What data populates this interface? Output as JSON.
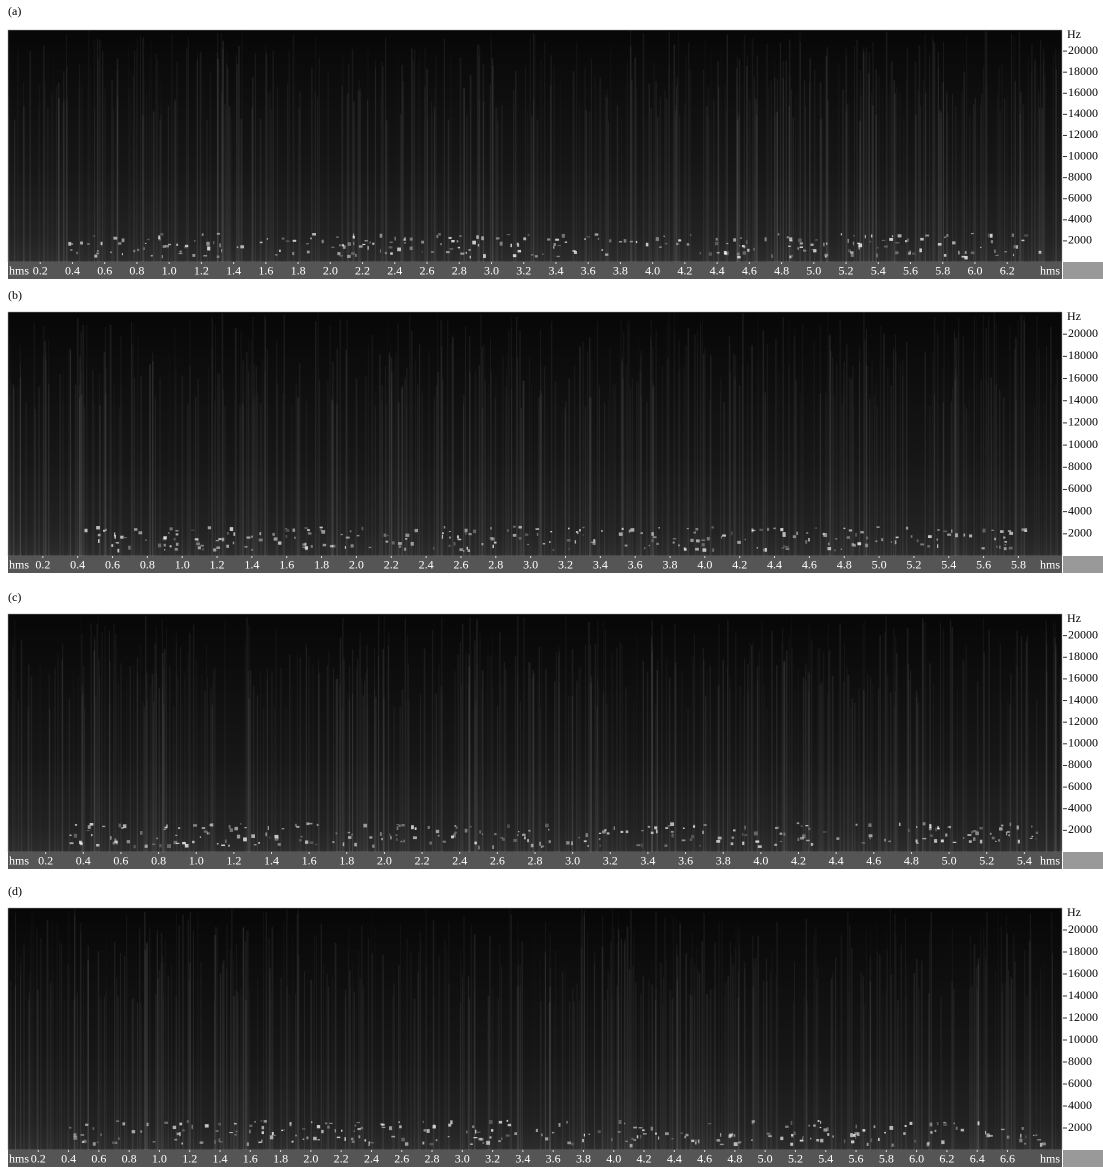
{
  "chart_data": [
    {
      "type": "spectrogram",
      "panel_label": "(a)",
      "xlabel": "hms",
      "ylabel": "Hz",
      "xlim": [
        0,
        6.54
      ],
      "ylim": [
        0,
        22000
      ],
      "xticks": [
        0.2,
        0.4,
        0.6,
        0.8,
        {
          "value": 1,
          "label": "1.0"
        },
        1.2,
        1.4,
        1.6,
        1.8,
        {
          "value": 2,
          "label": "2.0"
        },
        2.2,
        2.4,
        2.6,
        2.8,
        {
          "value": 3,
          "label": "3.0"
        },
        3.2,
        3.4,
        3.6,
        3.8,
        {
          "value": 4,
          "label": "4.0"
        },
        4.2,
        4.4,
        4.6,
        4.8,
        {
          "value": 5,
          "label": "5.0"
        },
        5.2,
        5.4,
        5.6,
        5.8,
        {
          "value": 6,
          "label": "6.0"
        },
        6.2
      ],
      "yticks": [
        2000,
        4000,
        6000,
        8000,
        10000,
        12000,
        14000,
        16000,
        18000,
        20000
      ]
    },
    {
      "type": "spectrogram",
      "panel_label": "(b)",
      "xlabel": "hms",
      "ylabel": "Hz",
      "xlim": [
        0,
        6.05
      ],
      "ylim": [
        0,
        22000
      ],
      "xticks": [
        0.2,
        0.4,
        0.6,
        0.8,
        {
          "value": 1,
          "label": "1.0"
        },
        1.2,
        1.4,
        1.6,
        1.8,
        {
          "value": 2,
          "label": "2.0"
        },
        2.2,
        2.4,
        2.6,
        2.8,
        {
          "value": 3,
          "label": "3.0"
        },
        3.2,
        3.4,
        3.6,
        3.8,
        {
          "value": 4,
          "label": "4.0"
        },
        4.2,
        4.4,
        4.6,
        4.8,
        {
          "value": 5,
          "label": "5.0"
        },
        5.2,
        5.4,
        5.6,
        5.8
      ],
      "yticks": [
        2000,
        4000,
        6000,
        8000,
        10000,
        12000,
        14000,
        16000,
        18000,
        20000
      ]
    },
    {
      "type": "spectrogram",
      "panel_label": "(c)",
      "xlabel": "hms",
      "ylabel": "Hz",
      "xlim": [
        0,
        5.6
      ],
      "ylim": [
        0,
        22000
      ],
      "xticks": [
        0.2,
        0.4,
        0.6,
        0.8,
        {
          "value": 1,
          "label": "1.0"
        },
        1.2,
        1.4,
        1.6,
        1.8,
        {
          "value": 2,
          "label": "2.0"
        },
        2.2,
        2.4,
        2.6,
        2.8,
        {
          "value": 3,
          "label": "3.0"
        },
        3.2,
        3.4,
        3.6,
        3.8,
        {
          "value": 4,
          "label": "4.0"
        },
        4.2,
        4.4,
        4.6,
        4.8,
        {
          "value": 5,
          "label": "5.0"
        },
        5.2,
        5.4
      ],
      "yticks": [
        2000,
        4000,
        6000,
        8000,
        10000,
        12000,
        14000,
        16000,
        18000,
        20000
      ]
    },
    {
      "type": "spectrogram",
      "panel_label": "(d)",
      "xlabel": "hms",
      "ylabel": "Hz",
      "xlim": [
        0,
        6.96
      ],
      "ylim": [
        0,
        22000
      ],
      "xticks": [
        0.2,
        0.4,
        0.6,
        0.8,
        {
          "value": 1,
          "label": "1.0"
        },
        1.2,
        1.4,
        1.6,
        1.8,
        {
          "value": 2,
          "label": "2.0"
        },
        2.2,
        2.4,
        2.6,
        2.8,
        {
          "value": 3,
          "label": "3.0"
        },
        3.2,
        3.4,
        3.6,
        3.8,
        {
          "value": 4,
          "label": "4.0"
        },
        4.2,
        4.4,
        4.6,
        4.8,
        {
          "value": 5,
          "label": "5.0"
        },
        5.2,
        5.4,
        5.6,
        5.8,
        {
          "value": 6,
          "label": "6.0"
        },
        6.2,
        6.4,
        6.6
      ],
      "yticks": [
        2000,
        4000,
        6000,
        8000,
        10000,
        12000,
        14000,
        16000,
        18000,
        20000
      ]
    }
  ]
}
